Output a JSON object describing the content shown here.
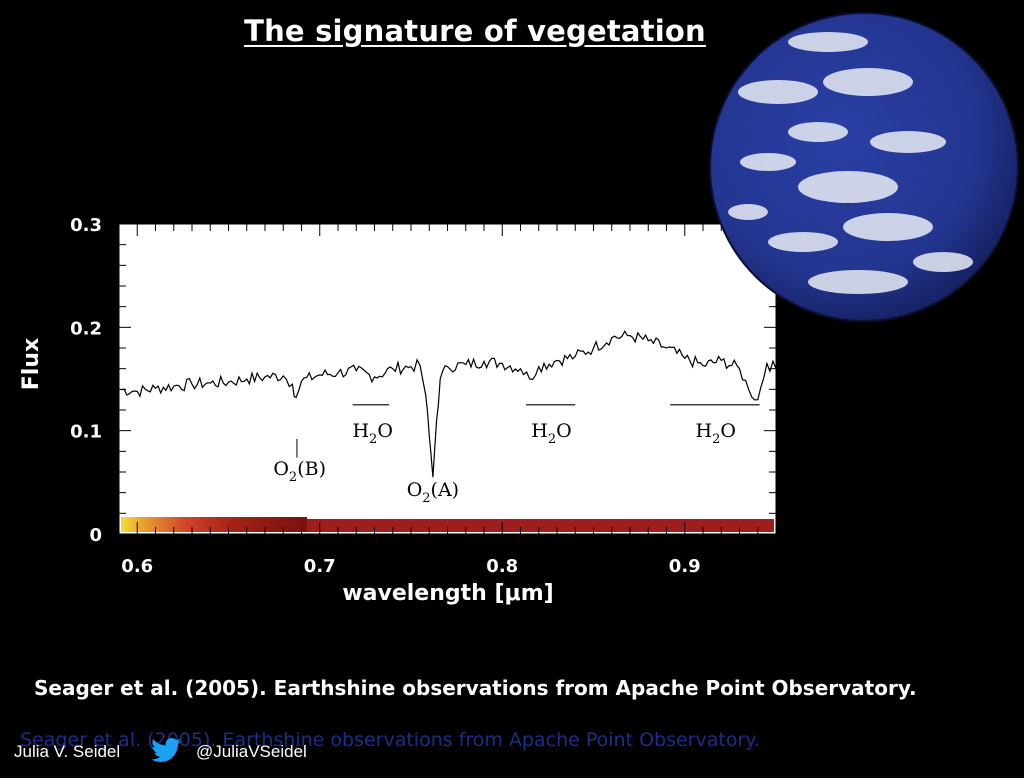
{
  "slide": {
    "title": "The signature of vegetation",
    "citation": "Seager et al. (2005). Earthshine observations from Apache Point Observatory.",
    "citation_ghost": "Seager et al. (2005). Earthshine observations from Apache Point Observatory.",
    "footer": {
      "author": "Julia V. Seidel",
      "handle": "@JuliaVSeidel"
    },
    "icons": {
      "twitter": "twitter-bird-icon",
      "earth": "earth-globe-image"
    },
    "colors": {
      "background": "#000000",
      "plot_bg": "#ffffff",
      "twitter": "#1da1f2",
      "ghost_text": "#1b2f86"
    }
  },
  "chart_data": {
    "type": "line",
    "xlabel": "wavelength [μm]",
    "ylabel": "Flux",
    "xlim": [
      0.59,
      0.95
    ],
    "ylim": [
      0,
      0.3
    ],
    "xticks": [
      0.6,
      0.7,
      0.8,
      0.9
    ],
    "xtick_labels": [
      "0.6",
      "0.7",
      "0.8",
      "0.9"
    ],
    "yticks": [
      0,
      0.1,
      0.2,
      0.3
    ],
    "ytick_labels": [
      "0",
      "0.1",
      "0.2",
      "0.3"
    ],
    "series": [
      {
        "x": [
          0.59,
          0.6,
          0.61,
          0.62,
          0.63,
          0.64,
          0.65,
          0.66,
          0.67,
          0.68,
          0.685,
          0.687,
          0.69,
          0.7,
          0.71,
          0.72,
          0.73,
          0.74,
          0.75,
          0.755,
          0.758,
          0.76,
          0.762,
          0.764,
          0.766,
          0.77,
          0.78,
          0.79,
          0.8,
          0.81,
          0.815,
          0.82,
          0.83,
          0.84,
          0.85,
          0.86,
          0.87,
          0.88,
          0.89,
          0.9,
          0.91,
          0.92,
          0.93,
          0.935,
          0.94,
          0.945,
          0.95
        ],
        "y": [
          0.14,
          0.138,
          0.141,
          0.143,
          0.145,
          0.146,
          0.147,
          0.15,
          0.152,
          0.153,
          0.145,
          0.132,
          0.148,
          0.154,
          0.156,
          0.158,
          0.152,
          0.16,
          0.162,
          0.163,
          0.135,
          0.095,
          0.055,
          0.11,
          0.15,
          0.162,
          0.164,
          0.167,
          0.165,
          0.16,
          0.15,
          0.162,
          0.168,
          0.172,
          0.18,
          0.19,
          0.192,
          0.187,
          0.18,
          0.17,
          0.163,
          0.168,
          0.16,
          0.14,
          0.13,
          0.165,
          0.16
        ]
      }
    ],
    "annotations": [
      {
        "label": "O2(A)",
        "x": 0.762,
        "y": 0.037
      },
      {
        "label": "O2(B)",
        "x": 0.689,
        "y": 0.057
      },
      {
        "label": "H2O",
        "x": 0.729,
        "y": 0.094,
        "band": [
          0.718,
          0.738
        ]
      },
      {
        "label": "H2O",
        "x": 0.827,
        "y": 0.094,
        "band": [
          0.813,
          0.84
        ]
      },
      {
        "label": "H2O",
        "x": 0.917,
        "y": 0.094,
        "band": [
          0.892,
          0.941
        ]
      }
    ],
    "color_bar_colors": [
      "#f6dc3a",
      "#e8a12e",
      "#d0442a",
      "#8b1414",
      "#a02020"
    ],
    "grid": false,
    "legend": "none"
  }
}
